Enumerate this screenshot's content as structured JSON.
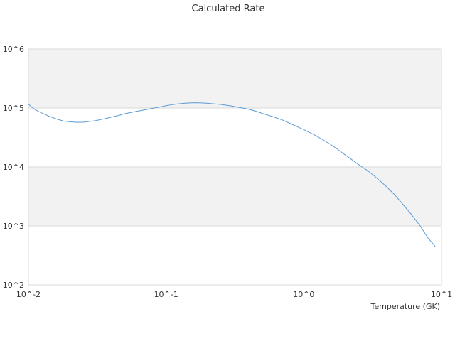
{
  "chart_data": {
    "type": "line",
    "title": "Calculated Rate",
    "xlabel": "Temperature (GK)",
    "ylabel": "",
    "x_scale": "log",
    "y_scale": "log",
    "xlim": [
      0.01,
      10
    ],
    "ylim": [
      100,
      1000000
    ],
    "x_ticks": [
      {
        "value": 0.01,
        "label": "10^-2"
      },
      {
        "value": 0.1,
        "label": "10^-1"
      },
      {
        "value": 1,
        "label": "10^0"
      },
      {
        "value": 10,
        "label": "10^1"
      }
    ],
    "y_ticks": [
      {
        "value": 100,
        "label": "10^2"
      },
      {
        "value": 1000,
        "label": "10^3"
      },
      {
        "value": 10000,
        "label": "10^4"
      },
      {
        "value": 100000,
        "label": "10^5"
      },
      {
        "value": 1000000,
        "label": "10^6"
      }
    ],
    "grid": true,
    "band_color": "#f2f2f2",
    "grid_color": "#d9d9d9",
    "legend": "none",
    "series": [
      {
        "color": "#5b9bd5",
        "x": [
          0.01,
          0.011,
          0.012,
          0.014,
          0.016,
          0.018,
          0.02,
          0.022,
          0.025,
          0.03,
          0.035,
          0.04,
          0.045,
          0.05,
          0.06,
          0.07,
          0.08,
          0.09,
          0.1,
          0.11,
          0.12,
          0.14,
          0.16,
          0.18,
          0.2,
          0.25,
          0.3,
          0.35,
          0.4,
          0.45,
          0.5,
          0.6,
          0.7,
          0.8,
          0.9,
          1.0,
          1.2,
          1.4,
          1.6,
          1.8,
          2.0,
          2.5,
          3.0,
          3.5,
          4.0,
          4.5,
          5.0,
          6.0,
          7.0,
          8.0,
          9.0
        ],
        "y": [
          116000,
          96000,
          86000,
          73000,
          65000,
          60000,
          58500,
          57500,
          57500,
          60500,
          65000,
          70000,
          74500,
          80000,
          87000,
          93000,
          99000,
          104000,
          109500,
          113500,
          117000,
          121000,
          122500,
          122000,
          120000,
          115000,
          108000,
          101000,
          95000,
          88000,
          81000,
          71000,
          62500,
          54500,
          48000,
          43000,
          34800,
          28300,
          23300,
          19200,
          16000,
          11000,
          8200,
          6100,
          4600,
          3500,
          2650,
          1600,
          1000,
          620,
          450
        ]
      }
    ]
  }
}
